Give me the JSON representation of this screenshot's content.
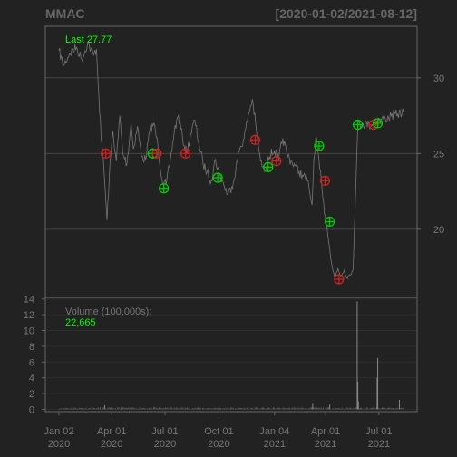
{
  "chart_data": {
    "type": "line",
    "title": "MMAC",
    "date_range_label": "[2020-01-02/2021-08-12]",
    "last_label": "Last 27.77",
    "price_axis": {
      "ticks": [
        20,
        25,
        30
      ],
      "ylim": [
        15.5,
        33.4
      ]
    },
    "x_ticks": [
      {
        "date": "2020-01-02",
        "label": "Jan 02",
        "year": "2020"
      },
      {
        "date": "2020-04-01",
        "label": "Apr 01",
        "year": "2020"
      },
      {
        "date": "2020-07-01",
        "label": "Jul 01",
        "year": "2020"
      },
      {
        "date": "2020-10-01",
        "label": "Oct 01",
        "year": "2020"
      },
      {
        "date": "2021-01-04",
        "label": "Jan 04",
        "year": "2021"
      },
      {
        "date": "2021-04-01",
        "label": "Apr 01",
        "year": "2021"
      },
      {
        "date": "2021-07-01",
        "label": "Jul 01",
        "year": "2021"
      }
    ],
    "price_series": [
      [
        "2020-01-02",
        31.8
      ],
      [
        "2020-01-10",
        30.8
      ],
      [
        "2020-01-20",
        31.6
      ],
      [
        "2020-02-01",
        32.0
      ],
      [
        "2020-02-10",
        31.2
      ],
      [
        "2020-02-20",
        32.3
      ],
      [
        "2020-03-01",
        31.5
      ],
      [
        "2020-03-06",
        31.9
      ],
      [
        "2020-03-10",
        29.0
      ],
      [
        "2020-03-14",
        26.0
      ],
      [
        "2020-03-18",
        24.5
      ],
      [
        "2020-03-21",
        22.5
      ],
      [
        "2020-03-24",
        20.6
      ],
      [
        "2020-03-28",
        23.5
      ],
      [
        "2020-04-03",
        26.5
      ],
      [
        "2020-04-09",
        24.5
      ],
      [
        "2020-04-15",
        27.5
      ],
      [
        "2020-04-20",
        25.0
      ],
      [
        "2020-04-27",
        24.3
      ],
      [
        "2020-05-04",
        27.0
      ],
      [
        "2020-05-08",
        25.3
      ],
      [
        "2020-05-15",
        26.8
      ],
      [
        "2020-05-22",
        24.8
      ],
      [
        "2020-05-29",
        24.6
      ],
      [
        "2020-06-05",
        26.5
      ],
      [
        "2020-06-12",
        27.0
      ],
      [
        "2020-06-19",
        25.5
      ],
      [
        "2020-06-26",
        23.3
      ],
      [
        "2020-07-03",
        22.9
      ],
      [
        "2020-07-10",
        24.5
      ],
      [
        "2020-07-17",
        26.5
      ],
      [
        "2020-07-24",
        27.5
      ],
      [
        "2020-07-31",
        26.0
      ],
      [
        "2020-08-07",
        25.0
      ],
      [
        "2020-08-14",
        26.3
      ],
      [
        "2020-08-21",
        27.2
      ],
      [
        "2020-08-28",
        25.6
      ],
      [
        "2020-09-04",
        24.3
      ],
      [
        "2020-09-11",
        23.8
      ],
      [
        "2020-09-18",
        23.2
      ],
      [
        "2020-09-25",
        24.6
      ],
      [
        "2020-10-02",
        23.6
      ],
      [
        "2020-10-09",
        23.0
      ],
      [
        "2020-10-16",
        22.3
      ],
      [
        "2020-10-23",
        22.8
      ],
      [
        "2020-10-30",
        24.0
      ],
      [
        "2020-11-06",
        25.4
      ],
      [
        "2020-11-13",
        26.0
      ],
      [
        "2020-11-20",
        27.5
      ],
      [
        "2020-11-27",
        28.6
      ],
      [
        "2020-12-04",
        26.5
      ],
      [
        "2020-12-11",
        24.5
      ],
      [
        "2020-12-18",
        23.8
      ],
      [
        "2020-12-24",
        24.8
      ],
      [
        "2021-01-04",
        25.2
      ],
      [
        "2021-01-11",
        24.6
      ],
      [
        "2021-01-18",
        26.0
      ],
      [
        "2021-01-25",
        25.0
      ],
      [
        "2021-02-01",
        24.5
      ],
      [
        "2021-02-08",
        24.2
      ],
      [
        "2021-02-15",
        23.8
      ],
      [
        "2021-02-22",
        23.5
      ],
      [
        "2021-03-01",
        23.2
      ],
      [
        "2021-03-05",
        22.4
      ],
      [
        "2021-03-09",
        21.6
      ],
      [
        "2021-03-12",
        24.6
      ],
      [
        "2021-03-15",
        26.0
      ],
      [
        "2021-03-18",
        25.5
      ],
      [
        "2021-03-22",
        24.0
      ],
      [
        "2021-03-26",
        22.6
      ],
      [
        "2021-03-30",
        21.0
      ],
      [
        "2021-04-03",
        20.3
      ],
      [
        "2021-04-07",
        19.0
      ],
      [
        "2021-04-12",
        17.6
      ],
      [
        "2021-04-17",
        16.8
      ],
      [
        "2021-04-22",
        17.4
      ],
      [
        "2021-04-27",
        16.9
      ],
      [
        "2021-05-03",
        17.3
      ],
      [
        "2021-05-07",
        16.8
      ],
      [
        "2021-05-12",
        17.0
      ],
      [
        "2021-05-18",
        17.3
      ],
      [
        "2021-05-26",
        26.9
      ],
      [
        "2021-06-04",
        27.0
      ],
      [
        "2021-06-14",
        26.9
      ],
      [
        "2021-06-23",
        27.0
      ],
      [
        "2021-07-02",
        27.2
      ],
      [
        "2021-07-12",
        27.3
      ],
      [
        "2021-07-22",
        27.5
      ],
      [
        "2021-08-02",
        27.6
      ],
      [
        "2021-08-12",
        27.77
      ]
    ],
    "markers": [
      {
        "date": "2020-03-22",
        "price": 25.0,
        "color": "#cc2222"
      },
      {
        "date": "2020-06-10",
        "price": 25.0,
        "color": "#00cc00"
      },
      {
        "date": "2020-06-17",
        "price": 25.0,
        "color": "#cc2222"
      },
      {
        "date": "2020-06-29",
        "price": 22.7,
        "color": "#00cc00"
      },
      {
        "date": "2020-08-05",
        "price": 25.0,
        "color": "#cc2222"
      },
      {
        "date": "2020-09-29",
        "price": 23.4,
        "color": "#00cc00"
      },
      {
        "date": "2020-12-02",
        "price": 25.9,
        "color": "#cc2222"
      },
      {
        "date": "2020-12-24",
        "price": 24.1,
        "color": "#00cc00"
      },
      {
        "date": "2021-01-07",
        "price": 24.5,
        "color": "#cc2222"
      },
      {
        "date": "2021-03-21",
        "price": 25.5,
        "color": "#00cc00"
      },
      {
        "date": "2021-03-31",
        "price": 23.2,
        "color": "#cc2222"
      },
      {
        "date": "2021-04-08",
        "price": 20.5,
        "color": "#00cc00"
      },
      {
        "date": "2021-04-24",
        "price": 16.7,
        "color": "#cc2222"
      },
      {
        "date": "2021-05-26",
        "price": 26.9,
        "color": "#00cc00"
      },
      {
        "date": "2021-06-22",
        "price": 26.9,
        "color": "#cc2222"
      },
      {
        "date": "2021-06-29",
        "price": 27.0,
        "color": "#00cc00"
      }
    ],
    "volume": {
      "label": "Volume (100,000s):",
      "last_value": "22,665",
      "ticks": [
        0,
        2,
        4,
        6,
        8,
        10,
        12,
        14
      ],
      "ylim": [
        -0.3,
        14.2
      ],
      "baseline": 0.15,
      "spikes": [
        {
          "date": "2021-05-25",
          "value": 13.7
        },
        {
          "date": "2021-05-26",
          "value": 3.5
        },
        {
          "date": "2021-05-27",
          "value": 1.0
        },
        {
          "date": "2021-06-29",
          "value": 6.5
        },
        {
          "date": "2021-06-28",
          "value": 4.0
        },
        {
          "date": "2021-08-05",
          "value": 1.2
        },
        {
          "date": "2021-03-10",
          "value": 0.8
        },
        {
          "date": "2020-03-20",
          "value": 0.5
        },
        {
          "date": "2021-04-08",
          "value": 0.6
        }
      ]
    },
    "colors": {
      "background": "#222222",
      "grid": "#444444",
      "price_line": "#777777",
      "text_green": "#00ff00",
      "axis_text": "#777777",
      "title": "#666666"
    },
    "grid": true
  }
}
